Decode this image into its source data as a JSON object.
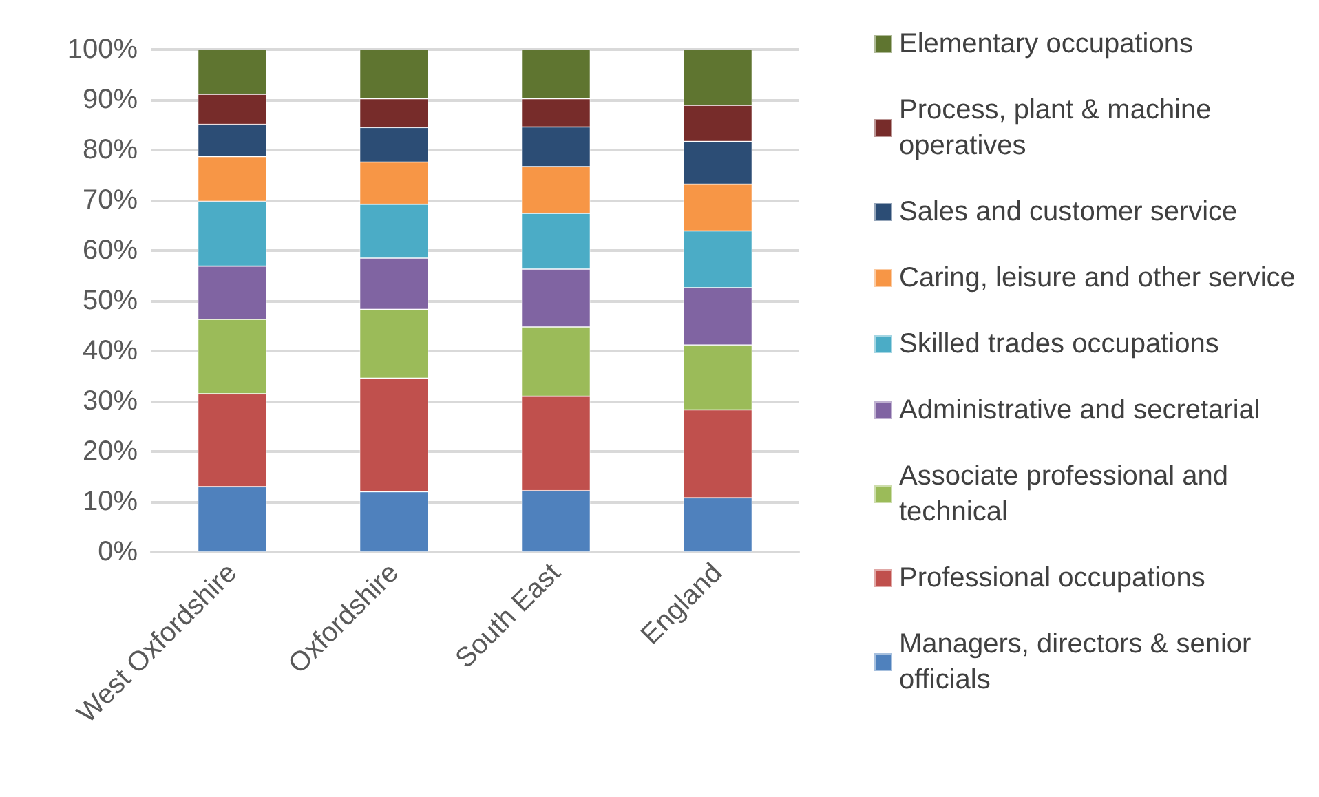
{
  "chart_data": {
    "type": "bar",
    "stacked": true,
    "categories": [
      "West Oxfordshire",
      "Oxfordshire",
      "South East",
      "England"
    ],
    "series": [
      {
        "name": "Managers, directors & senior officials",
        "color": "#4f81bd",
        "values": [
          13.0,
          12.0,
          12.2,
          10.8
        ]
      },
      {
        "name": "Professional occupations",
        "color": "#c0504d",
        "values": [
          18.5,
          22.6,
          18.8,
          17.5
        ]
      },
      {
        "name": "Associate professional and technical",
        "color": "#9bbb59",
        "values": [
          14.8,
          13.7,
          13.8,
          12.9
        ]
      },
      {
        "name": "Administrative and secretarial",
        "color": "#8064a2",
        "values": [
          10.6,
          10.2,
          11.5,
          11.4
        ]
      },
      {
        "name": "Skilled trades occupations",
        "color": "#4bacc6",
        "values": [
          12.9,
          10.7,
          11.1,
          11.3
        ]
      },
      {
        "name": "Caring, leisure and other service",
        "color": "#f79646",
        "values": [
          8.9,
          8.4,
          9.3,
          9.3
        ]
      },
      {
        "name": "Sales and customer service",
        "color": "#2c4d75",
        "values": [
          6.4,
          6.9,
          7.9,
          8.5
        ]
      },
      {
        "name": "Process, plant & machine operatives",
        "color": "#772c2a",
        "values": [
          6.0,
          5.7,
          5.6,
          7.2
        ]
      },
      {
        "name": "Elementary occupations",
        "color": "#5f7530",
        "values": [
          8.9,
          9.8,
          9.8,
          11.1
        ]
      }
    ],
    "ylim": [
      0,
      100
    ],
    "yticks": [
      {
        "value": 0,
        "label": "0%"
      },
      {
        "value": 10,
        "label": "10%"
      },
      {
        "value": 20,
        "label": "20%"
      },
      {
        "value": 30,
        "label": "30%"
      },
      {
        "value": 40,
        "label": "40%"
      },
      {
        "value": 50,
        "label": "50%"
      },
      {
        "value": 60,
        "label": "60%"
      },
      {
        "value": 70,
        "label": "70%"
      },
      {
        "value": 80,
        "label": "80%"
      },
      {
        "value": 90,
        "label": "90%"
      },
      {
        "value": 100,
        "label": "100%"
      }
    ],
    "grid": "y",
    "legend": "right"
  }
}
